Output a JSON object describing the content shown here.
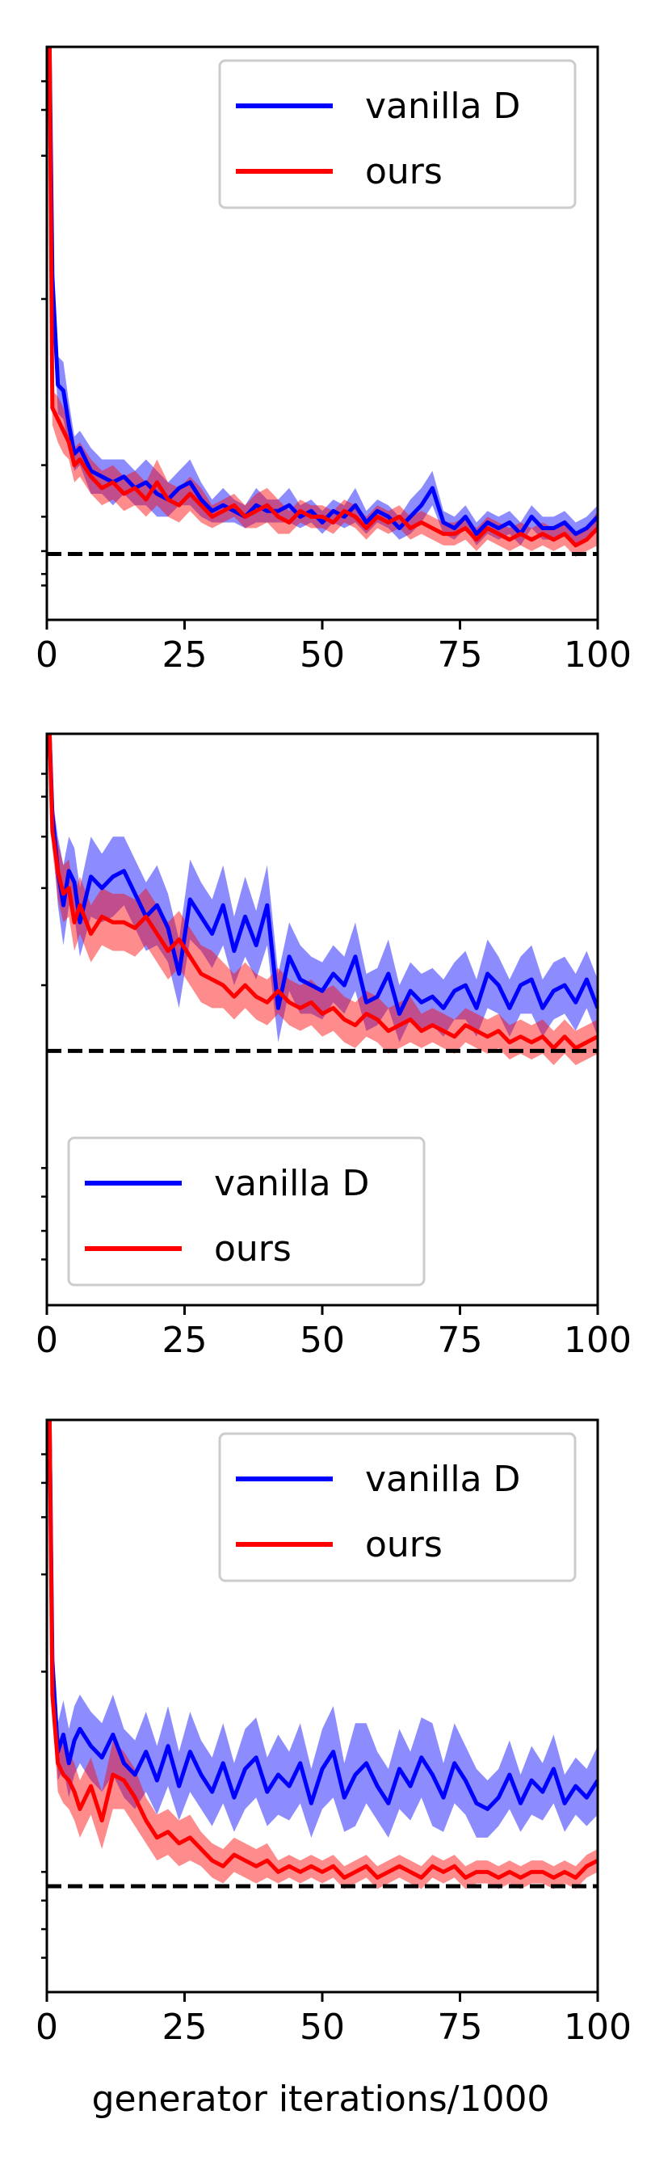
{
  "figure": {
    "xlabel": "generator iterations/1000",
    "colors": {
      "vanilla": "#0000ff",
      "ours": "#ff0000",
      "baseline": "#000000"
    }
  },
  "chart_data": [
    {
      "type": "line",
      "xlim": [
        0,
        100
      ],
      "ylim": [
        0,
        100
      ],
      "xticks": [
        "0",
        "25",
        "50",
        "75",
        "100"
      ],
      "ytick_labels_shown": false,
      "legend": {
        "position": "top-right",
        "entries": [
          "vanilla D",
          "ours"
        ]
      },
      "baseline_dashed": 11.5,
      "series": [
        {
          "name": "vanilla D",
          "x": [
            0.5,
            1,
            2,
            3,
            4,
            5,
            6,
            8,
            10,
            12,
            14,
            16,
            18,
            20,
            22,
            24,
            26,
            28,
            30,
            32,
            34,
            36,
            38,
            40,
            42,
            44,
            46,
            48,
            50,
            52,
            54,
            56,
            58,
            60,
            62,
            64,
            66,
            68,
            70,
            72,
            74,
            76,
            78,
            80,
            82,
            84,
            86,
            88,
            90,
            92,
            94,
            96,
            98,
            100
          ],
          "y": [
            100,
            60,
            41,
            40,
            34,
            29,
            30,
            26,
            25,
            24,
            25,
            23,
            24,
            22,
            21,
            23,
            24,
            21,
            19,
            20,
            19,
            18,
            20,
            19,
            19,
            20,
            18,
            19,
            17,
            19,
            18,
            20,
            17,
            19,
            18,
            16,
            18,
            20,
            23,
            17,
            16,
            18,
            15,
            17,
            16,
            17,
            15,
            18,
            16,
            16,
            17,
            15,
            16,
            18
          ],
          "band": [
            3,
            3,
            5,
            5,
            4,
            3,
            3,
            4,
            3,
            4,
            3,
            3,
            4,
            4,
            3,
            3,
            4,
            3,
            2,
            3,
            2,
            2,
            3,
            2,
            2,
            3,
            2,
            2,
            2,
            2,
            2,
            3,
            2,
            2,
            2,
            2,
            3,
            3,
            3,
            2,
            2,
            2,
            2,
            2,
            2,
            2,
            2,
            2,
            2,
            2,
            2,
            2,
            2,
            2
          ]
        },
        {
          "name": "ours",
          "x": [
            0.5,
            1,
            2,
            3,
            4,
            5,
            6,
            8,
            10,
            12,
            14,
            16,
            18,
            20,
            22,
            24,
            26,
            28,
            30,
            32,
            34,
            36,
            38,
            40,
            42,
            44,
            46,
            48,
            50,
            52,
            54,
            56,
            58,
            60,
            62,
            64,
            66,
            68,
            70,
            72,
            74,
            76,
            78,
            80,
            82,
            84,
            86,
            88,
            90,
            92,
            94,
            96,
            98,
            100
          ],
          "y": [
            100,
            37,
            35,
            33,
            31,
            27,
            28,
            25,
            23,
            24,
            22,
            23,
            21,
            24,
            21,
            20,
            22,
            20,
            18,
            19,
            20,
            18,
            19,
            20,
            18,
            17,
            19,
            18,
            18,
            17,
            19,
            18,
            16,
            18,
            17,
            18,
            16,
            17,
            16,
            15,
            15,
            16,
            14,
            16,
            15,
            14,
            15,
            14,
            15,
            14,
            15,
            13,
            14,
            16
          ],
          "band": [
            3,
            3,
            4,
            4,
            3,
            3,
            3,
            3,
            3,
            3,
            3,
            3,
            3,
            4,
            3,
            3,
            3,
            3,
            2,
            2,
            2,
            2,
            3,
            3,
            3,
            2,
            2,
            2,
            2,
            2,
            2,
            2,
            2,
            2,
            2,
            2,
            2,
            2,
            2,
            2,
            2,
            2,
            2,
            2,
            2,
            2,
            2,
            2,
            2,
            2,
            2,
            2,
            2,
            3
          ]
        }
      ]
    },
    {
      "type": "line",
      "xlim": [
        0,
        100
      ],
      "ylim": [
        0,
        100
      ],
      "xticks": [
        "0",
        "25",
        "50",
        "75",
        "100"
      ],
      "ytick_labels_shown": false,
      "legend": {
        "position": "bottom-left",
        "entries": [
          "vanilla D",
          "ours"
        ]
      },
      "baseline_dashed": 44.5,
      "series": [
        {
          "name": "vanilla D",
          "x": [
            0.5,
            1,
            2,
            3,
            4,
            5,
            6,
            8,
            10,
            12,
            14,
            16,
            18,
            20,
            22,
            24,
            26,
            28,
            30,
            32,
            34,
            36,
            38,
            40,
            42,
            44,
            46,
            48,
            50,
            52,
            54,
            56,
            58,
            60,
            62,
            64,
            66,
            68,
            70,
            72,
            74,
            76,
            78,
            80,
            82,
            84,
            86,
            88,
            90,
            92,
            94,
            96,
            98,
            100
          ],
          "y": [
            100,
            86,
            76,
            70,
            76,
            74,
            67,
            75,
            73,
            75,
            76,
            72,
            68,
            70,
            66,
            58,
            71,
            68,
            65,
            70,
            62,
            68,
            63,
            70,
            52,
            61,
            57,
            56,
            55,
            58,
            56,
            61,
            53,
            54,
            58,
            51,
            55,
            53,
            54,
            52,
            55,
            56,
            52,
            58,
            56,
            52,
            56,
            57,
            52,
            55,
            56,
            53,
            57,
            52
          ],
          "band": [
            3,
            3,
            6,
            7,
            6,
            6,
            6,
            7,
            6,
            7,
            6,
            6,
            6,
            7,
            6,
            6,
            7,
            6,
            6,
            7,
            6,
            7,
            6,
            7,
            6,
            6,
            6,
            5,
            5,
            5,
            5,
            6,
            5,
            5,
            6,
            5,
            5,
            5,
            5,
            5,
            5,
            6,
            5,
            6,
            5,
            5,
            5,
            6,
            5,
            5,
            5,
            5,
            5,
            5
          ]
        },
        {
          "name": "ours",
          "x": [
            0.5,
            1,
            2,
            3,
            4,
            5,
            6,
            8,
            10,
            12,
            14,
            16,
            18,
            20,
            22,
            24,
            26,
            28,
            30,
            32,
            34,
            36,
            38,
            40,
            42,
            44,
            46,
            48,
            50,
            52,
            54,
            56,
            58,
            60,
            62,
            64,
            66,
            68,
            70,
            72,
            74,
            76,
            78,
            80,
            82,
            84,
            86,
            88,
            90,
            92,
            94,
            96,
            98,
            100
          ],
          "y": [
            100,
            83,
            76,
            72,
            73,
            67,
            70,
            65,
            68,
            67,
            67,
            66,
            68,
            65,
            62,
            64,
            61,
            58,
            57,
            56,
            54,
            56,
            54,
            53,
            55,
            53,
            52,
            53,
            51,
            52,
            50,
            49,
            51,
            50,
            48,
            49,
            50,
            48,
            49,
            48,
            47,
            49,
            48,
            47,
            48,
            46,
            47,
            46,
            47,
            45,
            47,
            45,
            46,
            47
          ],
          "band": [
            3,
            3,
            5,
            5,
            5,
            5,
            5,
            5,
            5,
            5,
            5,
            5,
            5,
            5,
            5,
            5,
            5,
            5,
            5,
            4,
            4,
            4,
            4,
            4,
            4,
            4,
            4,
            4,
            4,
            4,
            4,
            4,
            4,
            4,
            4,
            4,
            4,
            3,
            3,
            3,
            3,
            3,
            3,
            3,
            3,
            3,
            3,
            3,
            3,
            3,
            3,
            3,
            3,
            3
          ]
        }
      ]
    },
    {
      "type": "line",
      "xlim": [
        0,
        100
      ],
      "ylim": [
        0,
        100
      ],
      "xticks": [
        "0",
        "25",
        "50",
        "75",
        "100"
      ],
      "ytick_labels_shown": false,
      "legend": {
        "position": "top-right",
        "entries": [
          "vanilla D",
          "ours"
        ]
      },
      "baseline_dashed": 18.5,
      "series": [
        {
          "name": "vanilla D",
          "x": [
            0.5,
            1,
            2,
            3,
            4,
            5,
            6,
            8,
            10,
            12,
            14,
            16,
            18,
            20,
            22,
            24,
            26,
            28,
            30,
            32,
            34,
            36,
            38,
            40,
            42,
            44,
            46,
            48,
            50,
            52,
            54,
            56,
            58,
            60,
            62,
            64,
            66,
            68,
            70,
            72,
            74,
            76,
            78,
            80,
            82,
            84,
            86,
            88,
            90,
            92,
            94,
            96,
            98,
            100
          ],
          "y": [
            100,
            58,
            42,
            45,
            40,
            44,
            46,
            43,
            41,
            45,
            40,
            38,
            42,
            37,
            43,
            36,
            42,
            38,
            35,
            40,
            34,
            39,
            41,
            35,
            38,
            36,
            40,
            33,
            39,
            42,
            34,
            38,
            40,
            36,
            33,
            39,
            36,
            41,
            38,
            34,
            40,
            37,
            33,
            32,
            34,
            38,
            33,
            37,
            35,
            39,
            33,
            36,
            34,
            37
          ],
          "band": [
            3,
            3,
            5,
            6,
            6,
            6,
            6,
            6,
            6,
            7,
            6,
            6,
            7,
            6,
            7,
            6,
            7,
            6,
            6,
            7,
            6,
            7,
            7,
            6,
            7,
            6,
            7,
            6,
            7,
            8,
            6,
            9,
            7,
            6,
            6,
            7,
            6,
            7,
            9,
            6,
            7,
            6,
            6,
            5,
            5,
            6,
            5,
            6,
            5,
            6,
            5,
            5,
            5,
            6
          ]
        },
        {
          "name": "ours",
          "x": [
            0.5,
            1,
            2,
            3,
            4,
            5,
            6,
            8,
            10,
            12,
            14,
            16,
            18,
            20,
            22,
            24,
            26,
            28,
            30,
            32,
            34,
            36,
            38,
            40,
            42,
            44,
            46,
            48,
            50,
            52,
            54,
            56,
            58,
            60,
            62,
            64,
            66,
            68,
            70,
            72,
            74,
            76,
            78,
            80,
            82,
            84,
            86,
            88,
            90,
            92,
            94,
            96,
            98,
            100
          ],
          "y": [
            100,
            52,
            40,
            38,
            37,
            35,
            32,
            36,
            30,
            38,
            37,
            34,
            30,
            27,
            28,
            26,
            27,
            25,
            23,
            22,
            24,
            23,
            22,
            23,
            21,
            22,
            21,
            22,
            21,
            22,
            20,
            21,
            22,
            20,
            21,
            22,
            21,
            20,
            22,
            21,
            22,
            20,
            21,
            21,
            20,
            21,
            20,
            21,
            21,
            20,
            21,
            20,
            22,
            23
          ],
          "band": [
            3,
            3,
            5,
            5,
            5,
            5,
            5,
            5,
            5,
            6,
            5,
            5,
            4,
            4,
            4,
            4,
            4,
            3,
            3,
            3,
            3,
            3,
            3,
            3,
            2,
            2,
            2,
            2,
            2,
            2,
            2,
            2,
            2,
            2,
            2,
            2,
            2,
            2,
            2,
            2,
            2,
            2,
            2,
            2,
            2,
            2,
            2,
            2,
            2,
            2,
            2,
            2,
            2,
            2
          ]
        }
      ]
    }
  ]
}
